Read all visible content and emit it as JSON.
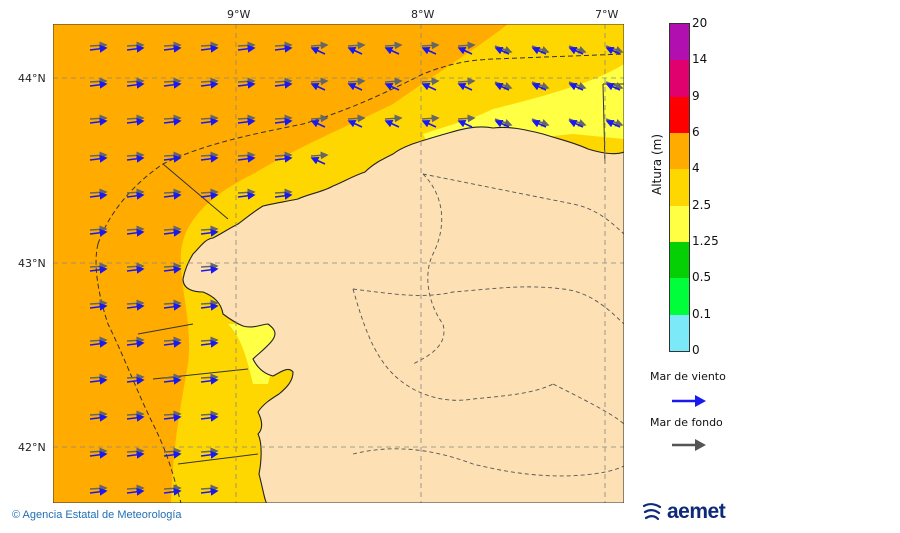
{
  "map": {
    "longitude_labels": [
      "9°W",
      "8°W",
      "7°W"
    ],
    "latitude_labels": [
      "44°N",
      "43°N",
      "42°N"
    ]
  },
  "colorbar": {
    "title": "Altura (m)",
    "levels": [
      "20",
      "14",
      "9",
      "6",
      "4",
      "2.5",
      "1.25",
      "0.5",
      "0.1",
      "0"
    ],
    "colors": [
      "#b10fb0",
      "#e0006e",
      "#fe0000",
      "#ffab00",
      "#ffd700",
      "#ffff44",
      "#05cf05",
      "#00ff3a",
      "#7be9f7",
      "#d8ffff"
    ],
    "class_order_top_to_bottom": [
      "14-20",
      "9-14",
      "6-9",
      "4-6",
      "2.5-4",
      "1.25-2.5",
      "0.5-1.25",
      "0.1-0.5",
      "0-0.1"
    ]
  },
  "legend": {
    "wind_sea_label": "Mar de viento",
    "wind_sea_color": "#1a1aee",
    "swell_label": "Mar de fondo",
    "swell_color": "#555555"
  },
  "colors": {
    "land": "#fde0b3",
    "sea_4_6": "#ffab00",
    "sea_2_5_4": "#ffd700",
    "sea_1_25_2_5": "#ffff44"
  },
  "footer": {
    "credit": "© Agencia Estatal de Meteorología",
    "logo_text": "aemet"
  }
}
